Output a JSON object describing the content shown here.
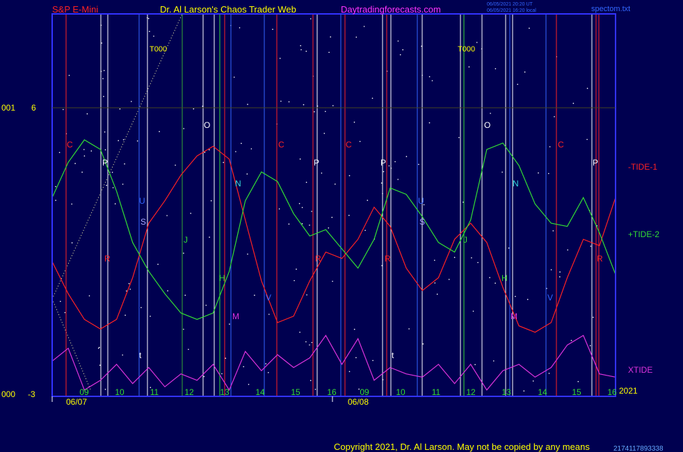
{
  "header": {
    "symbol": "S&P E-Mini",
    "site": "Dr. Al Larson's Chaos Trader Web",
    "url": "Daytradingforecasts.com",
    "stamp1": "06/05/2021 20:20 UT",
    "stamp2": "06/05/2021 16:20 local",
    "file": "spectom.txt"
  },
  "footer": {
    "copyright": "Copyright 2021, Dr. Al Larson. May not be copied by any means",
    "code": "2174117893338"
  },
  "colors": {
    "background": "#000050",
    "frame": "#3333ff",
    "tide1": "#ff2222",
    "tide2": "#33dd33",
    "xtide": "#dd33dd",
    "label": "#ffff00"
  },
  "chart_data": {
    "type": "line",
    "y_axis": {
      "top_label": "6",
      "bottom_label": "-3",
      "top_side": "001",
      "bottom_side": "000"
    },
    "x_axis": {
      "day1_hours": [
        "09",
        "10",
        "11",
        "12",
        "13",
        "14",
        "15",
        "16"
      ],
      "day2_hours": [
        "09",
        "10",
        "11",
        "12",
        "13",
        "14",
        "15",
        "16"
      ],
      "dates": [
        "06/07",
        "06/08"
      ],
      "year": "2021"
    },
    "series": [
      {
        "name": "-TIDE-1",
        "color": "#ff2222",
        "values": [
          1.2,
          0.2,
          -0.6,
          -0.9,
          -0.6,
          0.7,
          2.4,
          3.1,
          3.9,
          4.5,
          4.8,
          4.4,
          2.5,
          0.6,
          -0.7,
          -0.5,
          0.6,
          1.5,
          1.3,
          1.9,
          2.9,
          2.3,
          1.0,
          0.3,
          0.7,
          1.9,
          2.4,
          1.8,
          0.4,
          -0.8,
          -1.0,
          -0.7,
          0.7,
          1.9,
          1.7,
          3.2
        ]
      },
      {
        "name": "+TIDE-2",
        "color": "#33dd33",
        "values": [
          3.2,
          4.3,
          5.0,
          4.7,
          3.4,
          1.8,
          0.9,
          0.2,
          -0.4,
          -0.6,
          -0.4,
          0.9,
          3.1,
          4.0,
          3.7,
          2.7,
          2.0,
          2.2,
          1.6,
          1.0,
          1.9,
          3.5,
          3.3,
          2.6,
          1.8,
          1.5,
          2.5,
          4.7,
          4.9,
          4.2,
          3.0,
          2.4,
          2.3,
          3.2,
          2.1,
          0.8
        ]
      },
      {
        "name": "XTIDE",
        "color": "#dd33dd",
        "values": [
          -1.9,
          -1.5,
          -2.8,
          -2.5,
          -2.0,
          -2.6,
          -2.1,
          -2.7,
          -2.3,
          -2.5,
          -2.0,
          -2.8,
          -1.6,
          -2.2,
          -1.7,
          -2.1,
          -1.8,
          -1.1,
          -2.0,
          -1.2,
          -2.5,
          -2.1,
          -2.3,
          -2.4,
          -2.0,
          -2.6,
          -2.0,
          -2.8,
          -2.2,
          -2.0,
          -2.4,
          -2.1,
          -1.4,
          -1.1,
          -2.3,
          -2.4
        ]
      }
    ],
    "day_markers": [
      "T000",
      "T000"
    ],
    "line_letters": [
      "C",
      "P",
      "U",
      "S",
      "R",
      "J",
      "O",
      "H",
      "N",
      "M",
      "V",
      "C",
      "R",
      "P",
      "C",
      "P",
      "R",
      "U",
      "S",
      "J",
      "O",
      "H",
      "N",
      "M",
      "V",
      "C",
      "P",
      "R",
      "t",
      "t"
    ]
  }
}
